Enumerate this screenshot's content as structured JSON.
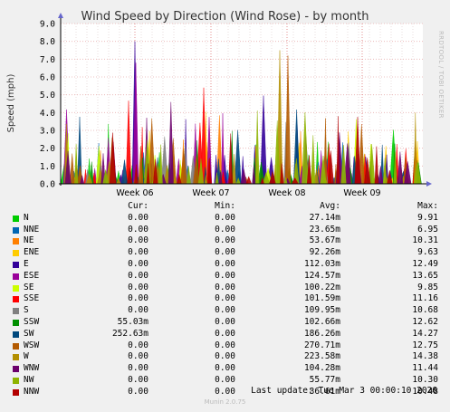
{
  "side_label": "RRDTOOL / TOBI OETIKER",
  "footer": {
    "last_update": "Last update: Tue Mar  3 00:00:10 2026",
    "munin": "Munin 2.0.75"
  },
  "chart_data": {
    "type": "area",
    "title": "Wind Speed by Direction (Wind Rose) - by month",
    "ylabel": "Speed (mph)",
    "ylim": [
      0,
      9
    ],
    "yticks": [
      "0.0",
      "1.0",
      "2.0",
      "3.0",
      "4.0",
      "5.0",
      "6.0",
      "7.0",
      "8.0",
      "9.0"
    ],
    "xticks": [
      "Week 06",
      "Week 07",
      "Week 08",
      "Week 09"
    ],
    "grid": true,
    "legend_placement": "bottom",
    "legend_header": {
      "cur": "Cur:",
      "min": "Min:",
      "avg": "Avg:",
      "max": "Max:"
    },
    "series": [
      {
        "name": "N",
        "color": "#00cc00",
        "cur": "0.00",
        "min": "0.00",
        "avg": "27.14m",
        "max": "9.91",
        "max_value": 9.91
      },
      {
        "name": "NNE",
        "color": "#0066b3",
        "cur": "0.00",
        "min": "0.00",
        "avg": "23.65m",
        "max": "6.95",
        "max_value": 6.95
      },
      {
        "name": "NE",
        "color": "#ff8000",
        "cur": "0.00",
        "min": "0.00",
        "avg": "53.67m",
        "max": "10.31",
        "max_value": 10.31
      },
      {
        "name": "ENE",
        "color": "#ffcc00",
        "cur": "0.00",
        "min": "0.00",
        "avg": "92.26m",
        "max": "9.63",
        "max_value": 9.63
      },
      {
        "name": "E",
        "color": "#330099",
        "cur": "0.00",
        "min": "0.00",
        "avg": "112.03m",
        "max": "12.49",
        "max_value": 12.49
      },
      {
        "name": "ESE",
        "color": "#990099",
        "cur": "0.00",
        "min": "0.00",
        "avg": "124.57m",
        "max": "13.65",
        "max_value": 13.65
      },
      {
        "name": "SE",
        "color": "#ccff00",
        "cur": "0.00",
        "min": "0.00",
        "avg": "100.22m",
        "max": "9.85",
        "max_value": 9.85
      },
      {
        "name": "SSE",
        "color": "#ff0000",
        "cur": "0.00",
        "min": "0.00",
        "avg": "101.59m",
        "max": "11.16",
        "max_value": 11.16
      },
      {
        "name": "S",
        "color": "#808080",
        "cur": "0.00",
        "min": "0.00",
        "avg": "109.95m",
        "max": "10.68",
        "max_value": 10.68
      },
      {
        "name": "SSW",
        "color": "#008f00",
        "cur": "55.03m",
        "min": "0.00",
        "avg": "102.66m",
        "max": "12.62",
        "max_value": 12.62
      },
      {
        "name": "SW",
        "color": "#00487d",
        "cur": "252.63m",
        "min": "0.00",
        "avg": "186.26m",
        "max": "14.27",
        "max_value": 14.27
      },
      {
        "name": "WSW",
        "color": "#b35a00",
        "cur": "0.00",
        "min": "0.00",
        "avg": "270.71m",
        "max": "12.75",
        "max_value": 12.75
      },
      {
        "name": "W",
        "color": "#b38f00",
        "cur": "0.00",
        "min": "0.00",
        "avg": "223.58m",
        "max": "14.38",
        "max_value": 14.38
      },
      {
        "name": "WNW",
        "color": "#6b006b",
        "cur": "0.00",
        "min": "0.00",
        "avg": "104.28m",
        "max": "11.44",
        "max_value": 11.44
      },
      {
        "name": "NW",
        "color": "#8fb300",
        "cur": "0.00",
        "min": "0.00",
        "avg": "55.77m",
        "max": "10.30",
        "max_value": 10.3
      },
      {
        "name": "NNW",
        "color": "#b30000",
        "cur": "0.00",
        "min": "0.00",
        "avg": "36.61m",
        "max": "10.48",
        "max_value": 10.48
      }
    ]
  }
}
